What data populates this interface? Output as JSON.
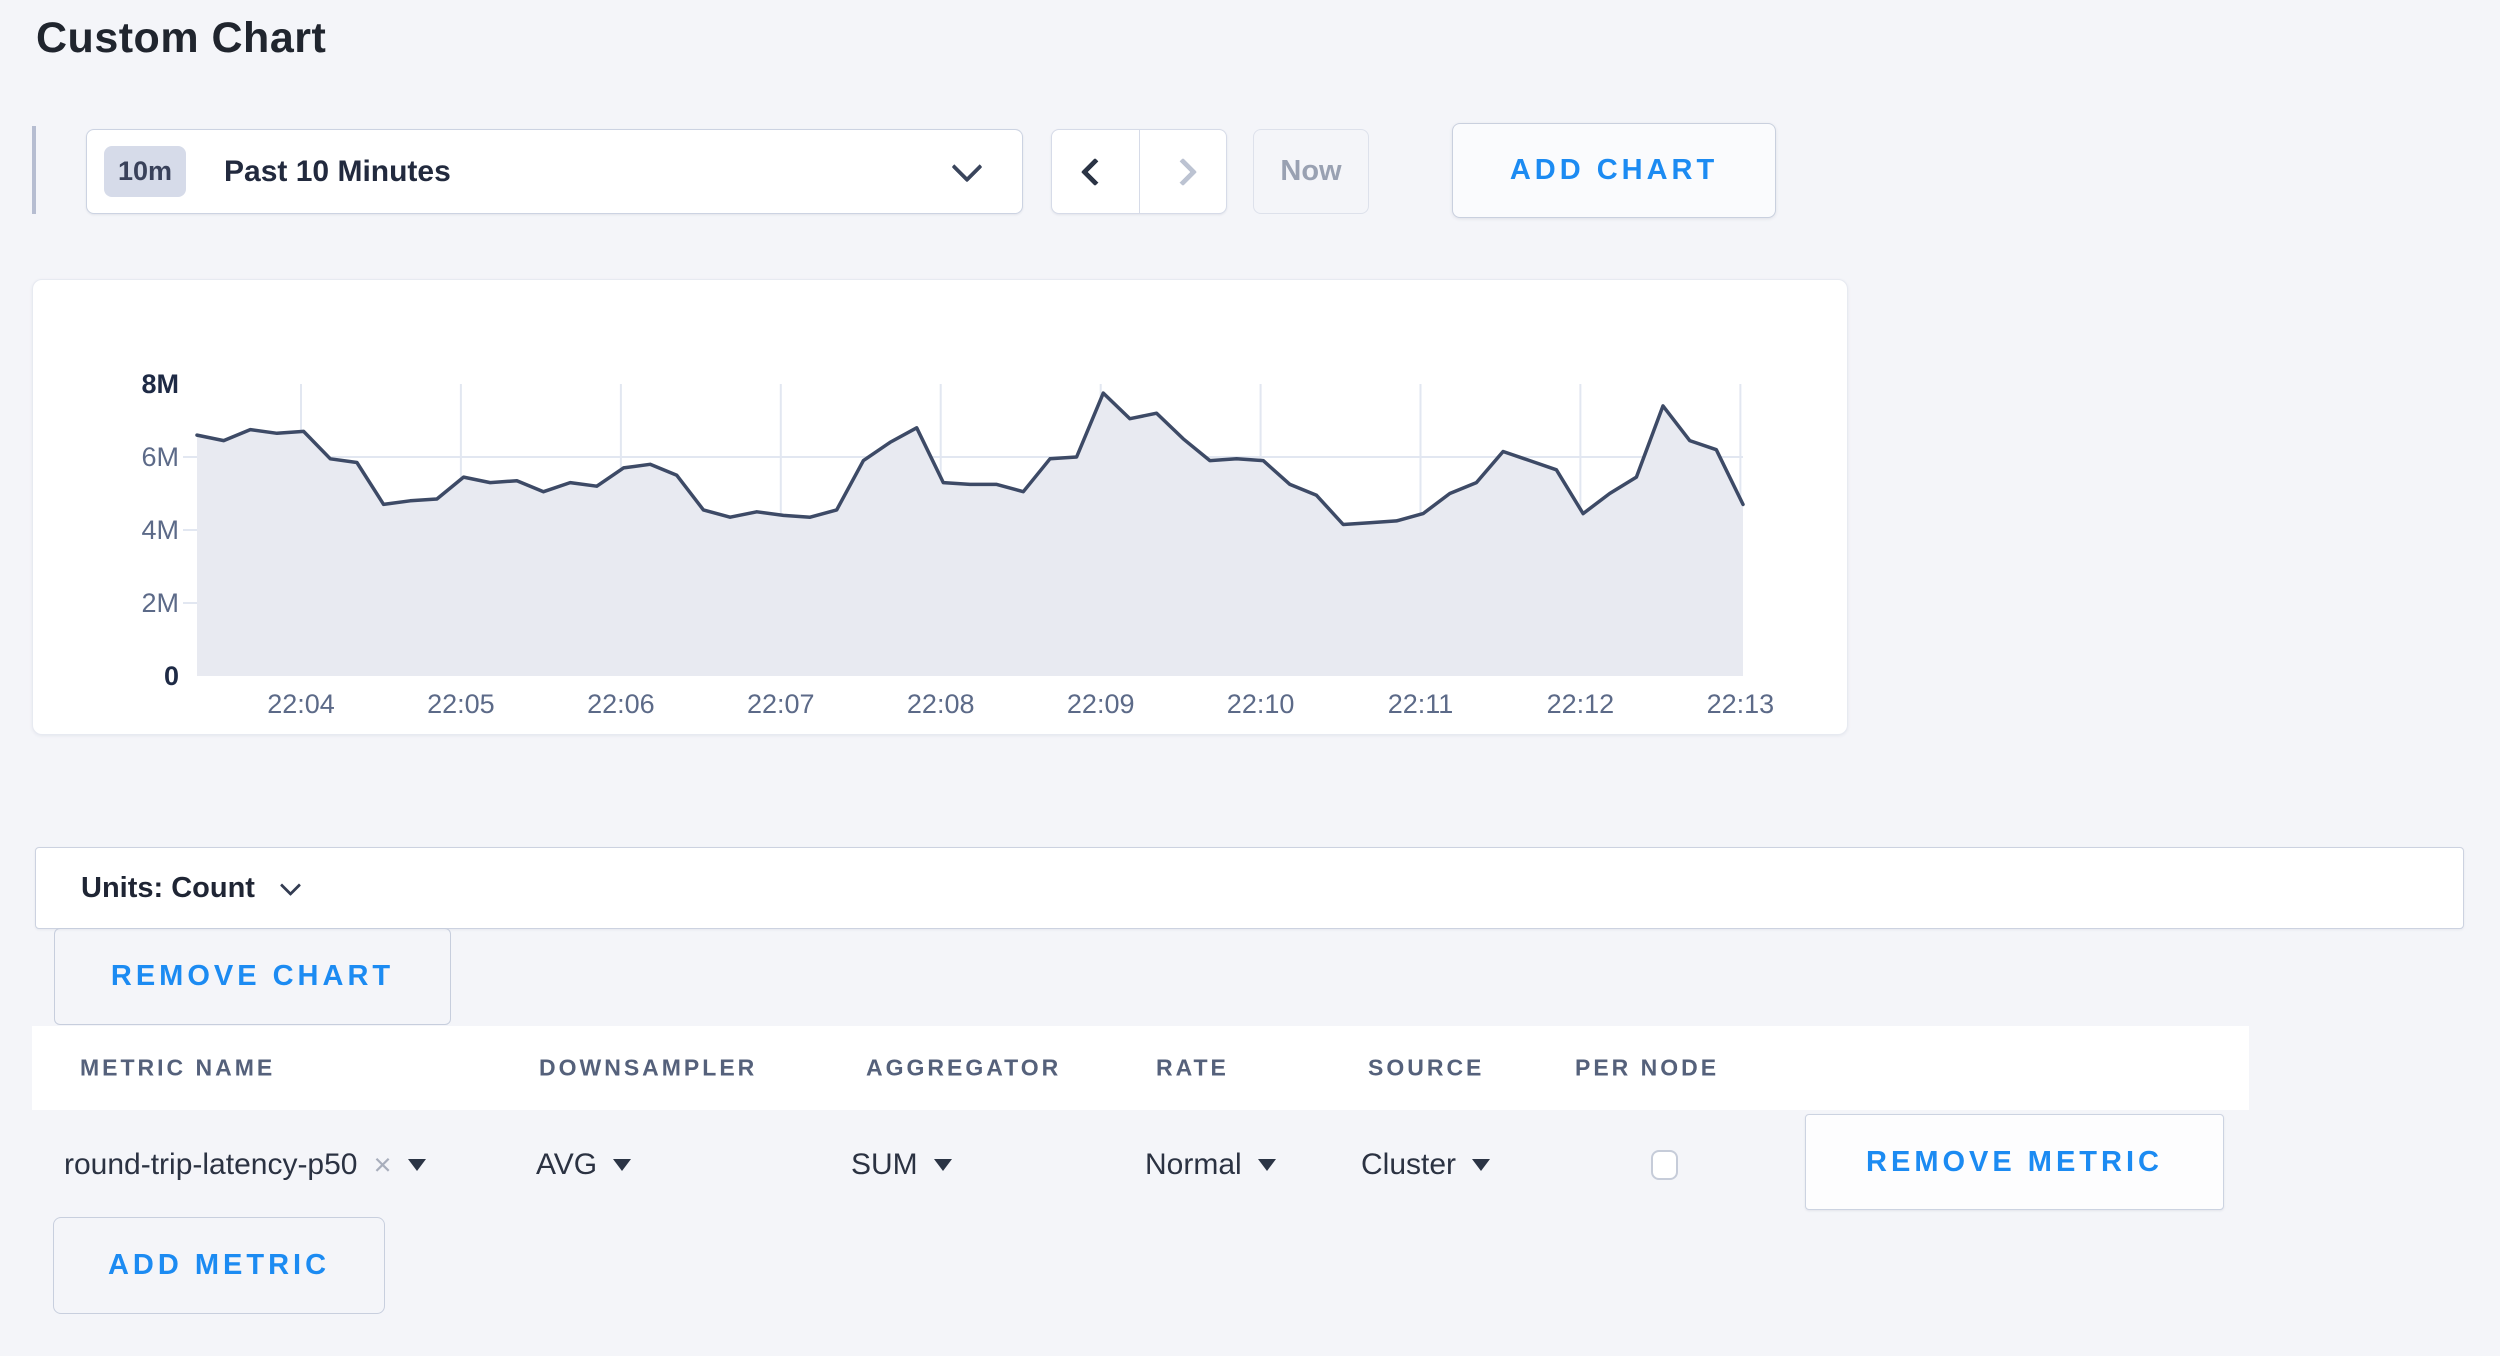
{
  "page": {
    "title": "Custom Chart",
    "colors": {
      "background": "#f4f5f9",
      "accent_blue": "#1c8bf2",
      "chart_line": "#3d4a66",
      "chart_fill": "#e8eaf1",
      "grid": "#e2e7f1",
      "axis_label": "#5c6a88",
      "axis_label_bold": "#1e2a45"
    }
  },
  "toolbar": {
    "time_badge": "10m",
    "time_label": "Past 10 Minutes",
    "now_label": "Now",
    "add_chart_label": "ADD CHART"
  },
  "chart_data": {
    "type": "area",
    "title": "",
    "unit": "Count",
    "x_start": "22:03:20",
    "x_interval_seconds": 10,
    "x_tick_labels": [
      "22:04",
      "22:05",
      "22:06",
      "22:07",
      "22:08",
      "22:09",
      "22:10",
      "22:11",
      "22:12",
      "22:13"
    ],
    "y_tick_labels": [
      "0",
      "2M",
      "4M",
      "6M",
      "8M"
    ],
    "y_tick_values_millions": [
      0,
      2,
      4,
      6,
      8
    ],
    "ylim_millions": [
      0,
      8
    ],
    "grid": true,
    "legend_position": "none",
    "series": [
      {
        "name": "round-trip-latency-p50",
        "values_millions": [
          6.6,
          6.45,
          6.75,
          6.65,
          6.7,
          5.95,
          5.85,
          4.7,
          4.8,
          4.85,
          5.45,
          5.3,
          5.35,
          5.05,
          5.3,
          5.2,
          5.7,
          5.8,
          5.5,
          4.55,
          4.35,
          4.5,
          4.4,
          4.35,
          4.55,
          5.9,
          6.4,
          6.8,
          5.3,
          5.25,
          5.25,
          5.05,
          5.95,
          6.0,
          7.75,
          7.05,
          7.2,
          6.5,
          5.9,
          5.95,
          5.9,
          5.25,
          4.95,
          4.15,
          4.2,
          4.25,
          4.45,
          5.0,
          5.3,
          6.15,
          5.9,
          5.65,
          4.45,
          5.0,
          5.45,
          7.4,
          6.45,
          6.2,
          4.7
        ]
      }
    ]
  },
  "units_bar": {
    "label": "Units: Count"
  },
  "actions": {
    "remove_chart_label": "REMOVE CHART",
    "add_metric_label": "ADD METRIC"
  },
  "metrics_table": {
    "headers": [
      "METRIC NAME",
      "DOWNSAMPLER",
      "AGGREGATOR",
      "RATE",
      "SOURCE",
      "PER NODE"
    ],
    "row": {
      "metric_name": "round-trip-latency-p50",
      "close_glyph": "×",
      "downsampler": "AVG",
      "aggregator": "SUM",
      "rate": "Normal",
      "source": "Cluster",
      "per_node_checked": false,
      "remove_label": "REMOVE METRIC"
    }
  }
}
